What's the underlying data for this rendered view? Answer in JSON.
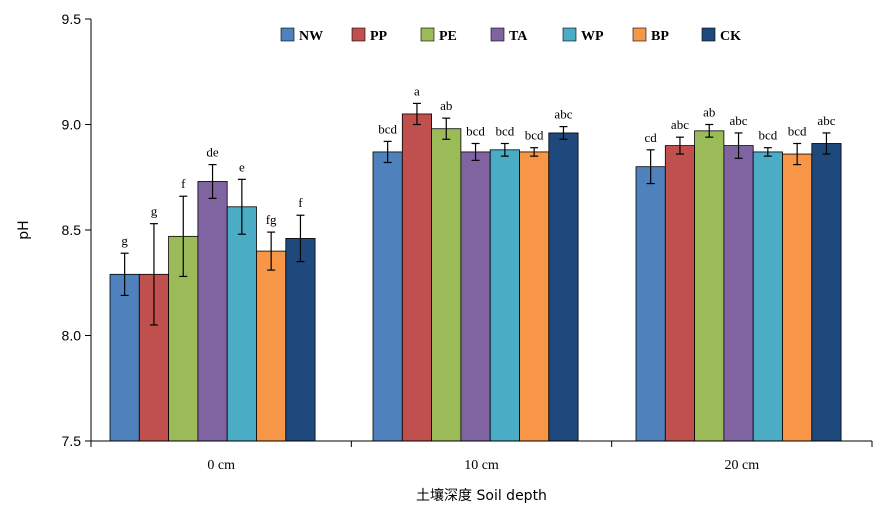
{
  "chart_data": {
    "type": "bar",
    "title": "",
    "xlabel": "土壤深度 Soil depth",
    "ylabel": "pH",
    "ylim": [
      7.5,
      9.5
    ],
    "yticks": [
      "7.5",
      "8.0",
      "8.5",
      "9.0",
      "9.5"
    ],
    "categories": [
      "0 cm",
      "10 cm",
      "20 cm"
    ],
    "legend_position": "top-right",
    "grid": false,
    "series": [
      {
        "name": "NW",
        "color": "#4F81BD",
        "values": [
          8.29,
          8.87,
          8.8
        ],
        "errors": [
          0.1,
          0.05,
          0.08
        ],
        "labels": [
          "g",
          "bcd",
          "cd"
        ]
      },
      {
        "name": "PP",
        "color": "#C0504D",
        "values": [
          8.29,
          9.05,
          8.9
        ],
        "errors": [
          0.24,
          0.05,
          0.04
        ],
        "labels": [
          "g",
          "a",
          "abc"
        ]
      },
      {
        "name": "PE",
        "color": "#9BBB59",
        "values": [
          8.47,
          8.98,
          8.97
        ],
        "errors": [
          0.19,
          0.05,
          0.03
        ],
        "labels": [
          "f",
          "ab",
          "ab"
        ]
      },
      {
        "name": "TA",
        "color": "#8064A2",
        "values": [
          8.73,
          8.87,
          8.9
        ],
        "errors": [
          0.08,
          0.04,
          0.06
        ],
        "labels": [
          "de",
          "bcd",
          "abc"
        ]
      },
      {
        "name": "WP",
        "color": "#4BACC6",
        "values": [
          8.61,
          8.88,
          8.87
        ],
        "errors": [
          0.13,
          0.03,
          0.02
        ],
        "labels": [
          "e",
          "bcd",
          "bcd"
        ]
      },
      {
        "name": "BP",
        "color": "#F79646",
        "values": [
          8.4,
          8.87,
          8.86
        ],
        "errors": [
          0.09,
          0.02,
          0.05
        ],
        "labels": [
          "fg",
          "bcd",
          "bcd"
        ]
      },
      {
        "name": "CK",
        "color": "#1F497D",
        "values": [
          8.46,
          8.96,
          8.91
        ],
        "errors": [
          0.11,
          0.03,
          0.05
        ],
        "labels": [
          "f",
          "abc",
          "abc"
        ]
      }
    ]
  }
}
